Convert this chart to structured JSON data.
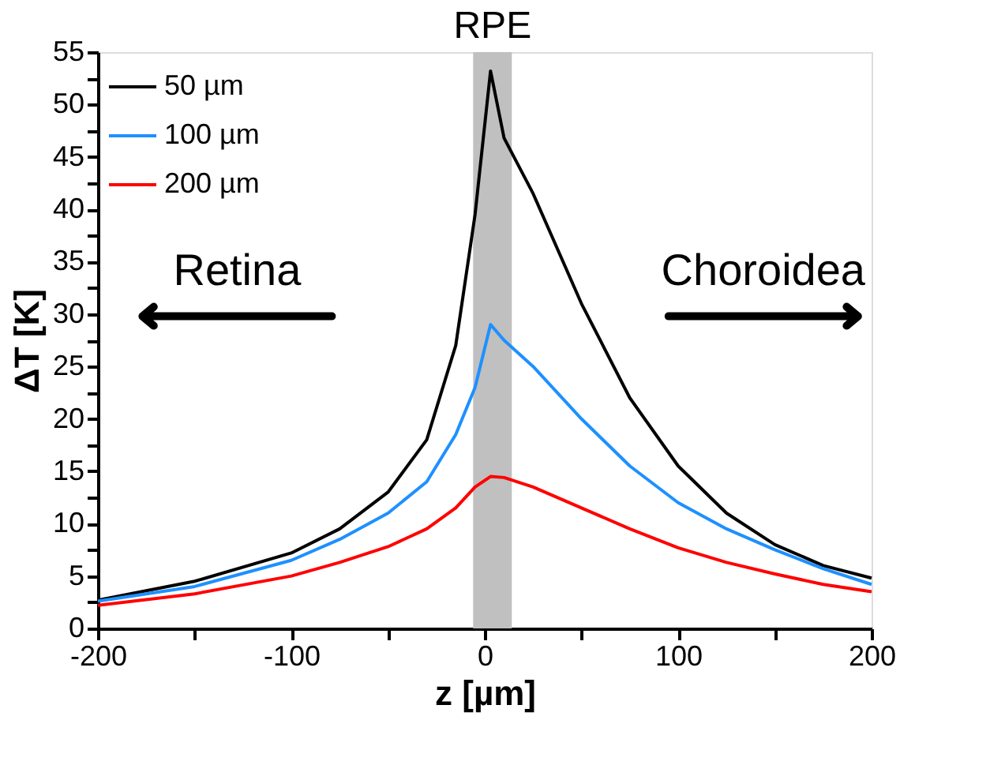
{
  "chart_data": {
    "type": "line",
    "xlabel": "z [µm]",
    "ylabel": "ΔT [K]",
    "x": [
      -200,
      -150,
      -100,
      -75,
      -50,
      -30,
      -15,
      -5,
      3,
      10,
      25,
      50,
      75,
      100,
      125,
      150,
      175,
      200
    ],
    "series": [
      {
        "name": "50 µm",
        "color": "#000000",
        "values": [
          2.7,
          4.5,
          7.2,
          9.5,
          13,
          18,
          27,
          39.5,
          53.2,
          46.8,
          41.5,
          31,
          22,
          15.5,
          11,
          8,
          6,
          4.8
        ]
      },
      {
        "name": "100 µm",
        "color": "#1e90ff",
        "values": [
          2.6,
          4.0,
          6.5,
          8.5,
          11,
          14,
          18.5,
          23,
          29,
          27.5,
          25,
          20,
          15.5,
          12,
          9.5,
          7.5,
          5.7,
          4.2
        ]
      },
      {
        "name": "200 µm",
        "color": "#ff0000",
        "values": [
          2.2,
          3.3,
          5,
          6.3,
          7.8,
          9.5,
          11.5,
          13.5,
          14.5,
          14.4,
          13.5,
          11.5,
          9.5,
          7.7,
          6.3,
          5.2,
          4.2,
          3.5
        ]
      }
    ],
    "xlim": [
      -200,
      200
    ],
    "xticks": [
      -200,
      {
        "value": -150,
        "label": null
      },
      -100,
      {
        "value": -50,
        "label": null
      },
      0,
      {
        "value": 50,
        "label": null
      },
      100,
      {
        "value": 150,
        "label": null
      },
      200
    ],
    "ylim": [
      0,
      55
    ],
    "yticks": [
      0,
      {
        "value": 2.5,
        "label": null
      },
      5,
      {
        "value": 7.5,
        "label": null
      },
      10,
      {
        "value": 12.5,
        "label": null
      },
      15,
      {
        "value": 17.5,
        "label": null
      },
      20,
      {
        "value": 22.5,
        "label": null
      },
      25,
      {
        "value": 27.5,
        "label": null
      },
      30,
      {
        "value": 32.5,
        "label": null
      },
      35,
      {
        "value": 37.5,
        "label": null
      },
      40,
      {
        "value": 42.5,
        "label": null
      },
      45,
      {
        "value": 47.5,
        "label": null
      },
      50,
      {
        "value": 52.5,
        "label": null
      },
      55
    ],
    "bands": [
      {
        "axis": "x",
        "from": -6,
        "to": 14,
        "label": "RPE",
        "color": "#c0c0c0"
      }
    ],
    "annotations": [
      "Retina",
      "Choroidea"
    ],
    "legend": "top left",
    "grid": false,
    "marker": "none",
    "line_style": "solid"
  }
}
